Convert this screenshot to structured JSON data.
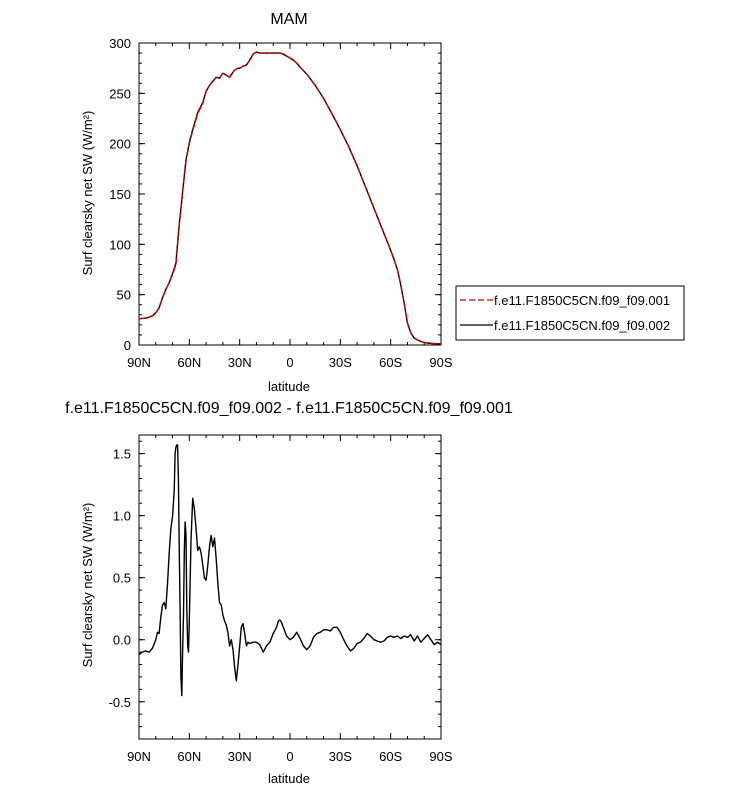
{
  "chart_data": [
    {
      "type": "line",
      "title": "MAM",
      "xlabel": "latitude",
      "ylabel": "Surf clearsky net SW (W/m²)",
      "xlim": [
        90,
        -90
      ],
      "ylim": [
        0,
        300
      ],
      "xticks": [
        {
          "value": 90,
          "label": "90N"
        },
        {
          "value": 60,
          "label": "60N"
        },
        {
          "value": 30,
          "label": "30N"
        },
        {
          "value": 0,
          "label": "0"
        },
        {
          "value": -30,
          "label": "30S"
        },
        {
          "value": -60,
          "label": "60S"
        },
        {
          "value": -90,
          "label": "90S"
        }
      ],
      "yticks": [
        0,
        50,
        100,
        150,
        200,
        250,
        300
      ],
      "legend_position": "right",
      "series": [
        {
          "name": "f.e11.F1850C5CN.f09_f09.001",
          "color": "#cc0000",
          "dash": "dashed",
          "x": [
            90,
            85,
            82,
            80,
            78,
            76,
            74,
            72,
            70,
            68,
            67,
            66,
            65,
            64,
            62,
            60,
            58,
            55,
            52,
            50,
            48,
            46,
            44,
            42,
            40,
            38,
            36,
            34,
            33,
            32,
            31,
            30,
            29,
            28,
            26,
            24,
            22,
            20,
            18,
            16,
            14,
            12,
            10,
            8,
            6,
            4,
            2,
            0,
            -2,
            -4,
            -6,
            -10,
            -15,
            -20,
            -25,
            -30,
            -35,
            -40,
            -45,
            -50,
            -55,
            -60,
            -62,
            -64,
            -66,
            -68,
            -70,
            -72,
            -74,
            -76,
            -78,
            -80,
            -82,
            -85,
            -88,
            -90
          ],
          "values": [
            26,
            27,
            29,
            32,
            37,
            47,
            55,
            62,
            70,
            80,
            100,
            120,
            135,
            152,
            183,
            200,
            213,
            230,
            240,
            252,
            258,
            262,
            266,
            265,
            270,
            268,
            266,
            271,
            273,
            274,
            275,
            275,
            276,
            277,
            278,
            283,
            289,
            291,
            290,
            290,
            290,
            290,
            290,
            290,
            290,
            289,
            287,
            285,
            283,
            280,
            276,
            269,
            258,
            245,
            230,
            214,
            197,
            178,
            157,
            136,
            115,
            94,
            85,
            75,
            60,
            42,
            22,
            12,
            7,
            5,
            3.5,
            2.5,
            2,
            1.5,
            1.2,
            1
          ]
        },
        {
          "name": "f.e11.F1850C5CN.f09_f09.002",
          "color": "#000000",
          "dash": "solid",
          "x": [
            90,
            85,
            82,
            80,
            78,
            76,
            74,
            72,
            70,
            68,
            67,
            66,
            65,
            64,
            62,
            60,
            58,
            55,
            52,
            50,
            48,
            46,
            44,
            42,
            40,
            38,
            36,
            34,
            33,
            32,
            31,
            30,
            29,
            28,
            26,
            24,
            22,
            20,
            18,
            16,
            14,
            12,
            10,
            8,
            6,
            4,
            2,
            0,
            -2,
            -4,
            -6,
            -10,
            -15,
            -20,
            -25,
            -30,
            -35,
            -40,
            -45,
            -50,
            -55,
            -60,
            -62,
            -64,
            -66,
            -68,
            -70,
            -72,
            -74,
            -76,
            -78,
            -80,
            -82,
            -85,
            -88,
            -90
          ],
          "values": [
            26,
            27,
            29,
            32,
            37,
            47,
            55,
            62,
            71,
            81,
            101,
            121,
            135,
            152,
            184,
            201,
            214,
            231,
            241,
            252,
            258,
            262,
            266,
            265,
            270,
            268,
            266,
            271,
            273,
            274,
            275,
            275,
            276,
            277,
            278,
            283,
            289,
            291,
            290,
            290,
            290,
            290,
            290,
            290,
            290,
            289,
            287,
            285,
            283,
            280,
            276,
            269,
            258,
            245,
            230,
            214,
            197,
            178,
            157,
            136,
            115,
            94,
            85,
            75,
            60,
            42,
            22,
            12,
            7,
            5,
            3.5,
            2.5,
            2,
            1.5,
            1.2,
            1
          ]
        }
      ]
    },
    {
      "type": "line",
      "title": "f.e11.F1850C5CN.f09_f09.002 - f.e11.F1850C5CN.f09_f09.001",
      "xlabel": "latitude",
      "ylabel": "Surf clearsky net SW (W/m²)",
      "xlim": [
        90,
        -90
      ],
      "ylim": [
        -0.8,
        1.65
      ],
      "xticks": [
        {
          "value": 90,
          "label": "90N"
        },
        {
          "value": 60,
          "label": "60N"
        },
        {
          "value": 30,
          "label": "30N"
        },
        {
          "value": 0,
          "label": "0"
        },
        {
          "value": -30,
          "label": "30S"
        },
        {
          "value": -60,
          "label": "60S"
        },
        {
          "value": -90,
          "label": "90S"
        }
      ],
      "yticks": [
        {
          "value": -0.5,
          "label": "-0.5"
        },
        {
          "value": 0,
          "label": "0.0"
        },
        {
          "value": 0.5,
          "label": "0.5"
        },
        {
          "value": 1.0,
          "label": "1.0"
        },
        {
          "value": 1.5,
          "label": "1.5"
        }
      ],
      "series": [
        {
          "color": "#000000",
          "x": [
            90,
            88,
            86,
            84,
            82,
            80,
            79,
            78,
            77,
            76,
            75,
            74,
            73,
            72,
            71,
            70,
            69,
            68.5,
            68,
            67.5,
            67,
            66.5,
            66,
            65.5,
            65,
            64.5,
            64,
            63.5,
            63,
            62.5,
            62,
            61.5,
            61,
            60.5,
            60,
            59,
            58,
            57,
            56,
            55,
            54,
            53,
            52,
            51,
            50,
            49,
            48,
            47,
            46,
            45,
            44,
            43,
            42,
            41,
            40,
            39,
            38,
            37,
            36,
            35,
            34,
            33,
            32,
            31,
            30,
            29,
            28,
            27,
            26,
            25,
            24,
            22,
            20,
            18,
            16,
            14,
            12,
            10,
            8,
            7,
            6,
            5,
            4,
            2,
            0,
            -2,
            -4,
            -6,
            -8,
            -10,
            -12,
            -14,
            -16,
            -18,
            -20,
            -22,
            -24,
            -26,
            -28,
            -30,
            -32,
            -34,
            -36,
            -38,
            -40,
            -42,
            -44,
            -46,
            -48,
            -50,
            -52,
            -54,
            -56,
            -58,
            -60,
            -62,
            -64,
            -66,
            -68,
            -70,
            -72,
            -74,
            -76,
            -78,
            -80,
            -82,
            -84,
            -86,
            -88,
            -90
          ],
          "values": [
            -0.12,
            -0.1,
            -0.09,
            -0.1,
            -0.07,
            0,
            0.06,
            0.05,
            0.18,
            0.28,
            0.3,
            0.25,
            0.45,
            0.7,
            0.9,
            1.0,
            1.2,
            1.5,
            1.55,
            1.57,
            1.57,
            1.3,
            0.7,
            0.25,
            -0.3,
            -0.45,
            -0.1,
            0.2,
            0.7,
            0.95,
            0.85,
            0.25,
            -0.05,
            -0.1,
            0.15,
            0.8,
            1.14,
            1.05,
            0.9,
            0.72,
            0.75,
            0.7,
            0.6,
            0.5,
            0.48,
            0.6,
            0.75,
            0.84,
            0.75,
            0.82,
            0.65,
            0.45,
            0.3,
            0.28,
            0.2,
            0.15,
            0.12,
            0.06,
            -0.05,
            0.0,
            -0.08,
            -0.22,
            -0.33,
            -0.2,
            -0.05,
            0.1,
            0.13,
            0.05,
            -0.05,
            -0.02,
            -0.03,
            -0.02,
            -0.02,
            -0.04,
            -0.1,
            -0.05,
            -0.02,
            0.05,
            0.1,
            0.15,
            0.16,
            0.14,
            0.1,
            0.03,
            0,
            0.02,
            0.06,
            0.01,
            -0.05,
            -0.08,
            -0.05,
            0.02,
            0.05,
            0.06,
            0.08,
            0.08,
            0.07,
            0.1,
            0.1,
            0.06,
            0.0,
            -0.05,
            -0.09,
            -0.07,
            -0.03,
            -0.02,
            0.01,
            0.05,
            0.03,
            0.0,
            -0.01,
            -0.02,
            -0.01,
            0.02,
            0.03,
            0.02,
            0.03,
            0.01,
            0.03,
            0.02,
            0.04,
            -0.01,
            0.03,
            -0.02,
            0.01,
            0.04,
            0.0,
            -0.04,
            -0.02,
            -0.04
          ]
        }
      ]
    }
  ]
}
